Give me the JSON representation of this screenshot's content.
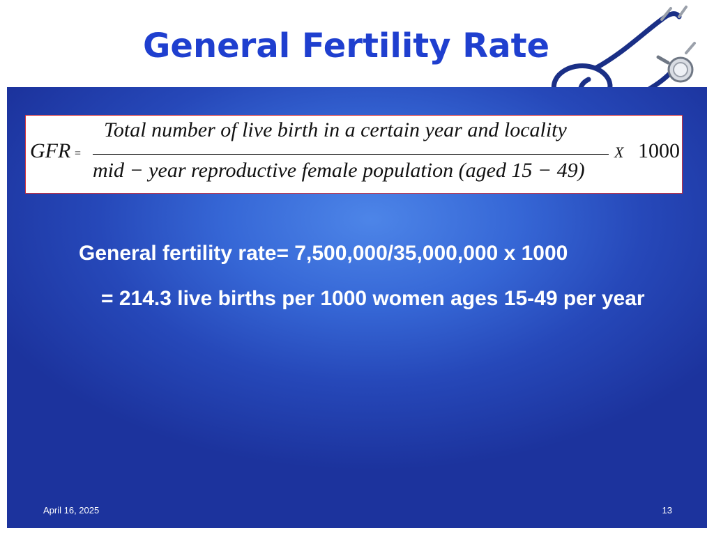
{
  "slide": {
    "title": "General Fertility Rate",
    "formula": {
      "lhs": "GFR",
      "equals": "=",
      "numerator": "Total number of live birth in a certain year and locality",
      "denominator": "mid − year reproductive female population (aged 15 − 49)",
      "multiplier_symbol": "X",
      "multiplier_value": "1000"
    },
    "calculation": "General fertility rate= 7,500,000/35,000,000 x 1000",
    "result": "= 214.3 live births per 1000 women ages 15-49 per year",
    "footer": {
      "date": "April 16, 2025",
      "page_number": "13"
    }
  },
  "colors": {
    "title": "#1f3fcf",
    "panel_light": "#4d85e8",
    "panel_dark": "#1c339d",
    "formula_border": "#d0303a",
    "text_on_panel": "#ffffff"
  },
  "icons": {
    "decoration": "stethoscope-icon"
  }
}
